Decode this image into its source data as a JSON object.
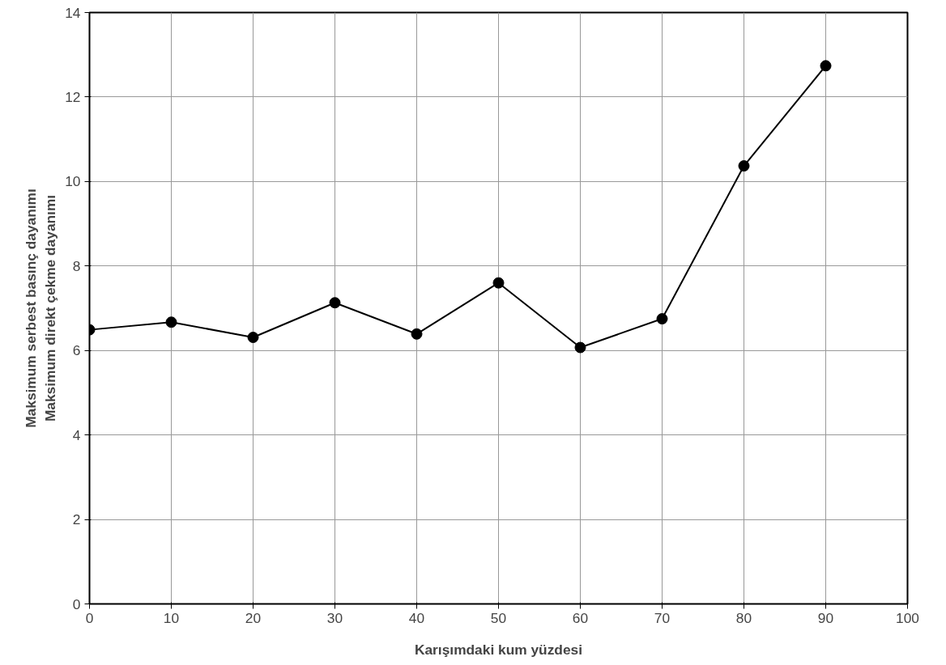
{
  "chart_data": {
    "type": "line",
    "xlabel": "Karışımdaki kum yüzdesi",
    "ylabel": "Maksimum serbest basınç dayanımı\nMaksimum direkt çekme dayanımı",
    "x": [
      0,
      10,
      20,
      30,
      40,
      50,
      60,
      70,
      80,
      90
    ],
    "series": [
      {
        "color": "#000000",
        "values": [
          6.49,
          6.67,
          6.31,
          7.13,
          6.39,
          7.6,
          6.07,
          6.75,
          10.37,
          12.74
        ]
      }
    ],
    "xlim": [
      0,
      100
    ],
    "xticks": [
      0,
      10,
      20,
      30,
      40,
      50,
      60,
      70,
      80,
      90,
      100
    ],
    "ylim": [
      0,
      14
    ],
    "yticks": [
      0,
      2,
      4,
      6,
      8,
      10,
      12,
      14
    ],
    "grid": true,
    "marker": "circle",
    "line_style": "solid"
  }
}
